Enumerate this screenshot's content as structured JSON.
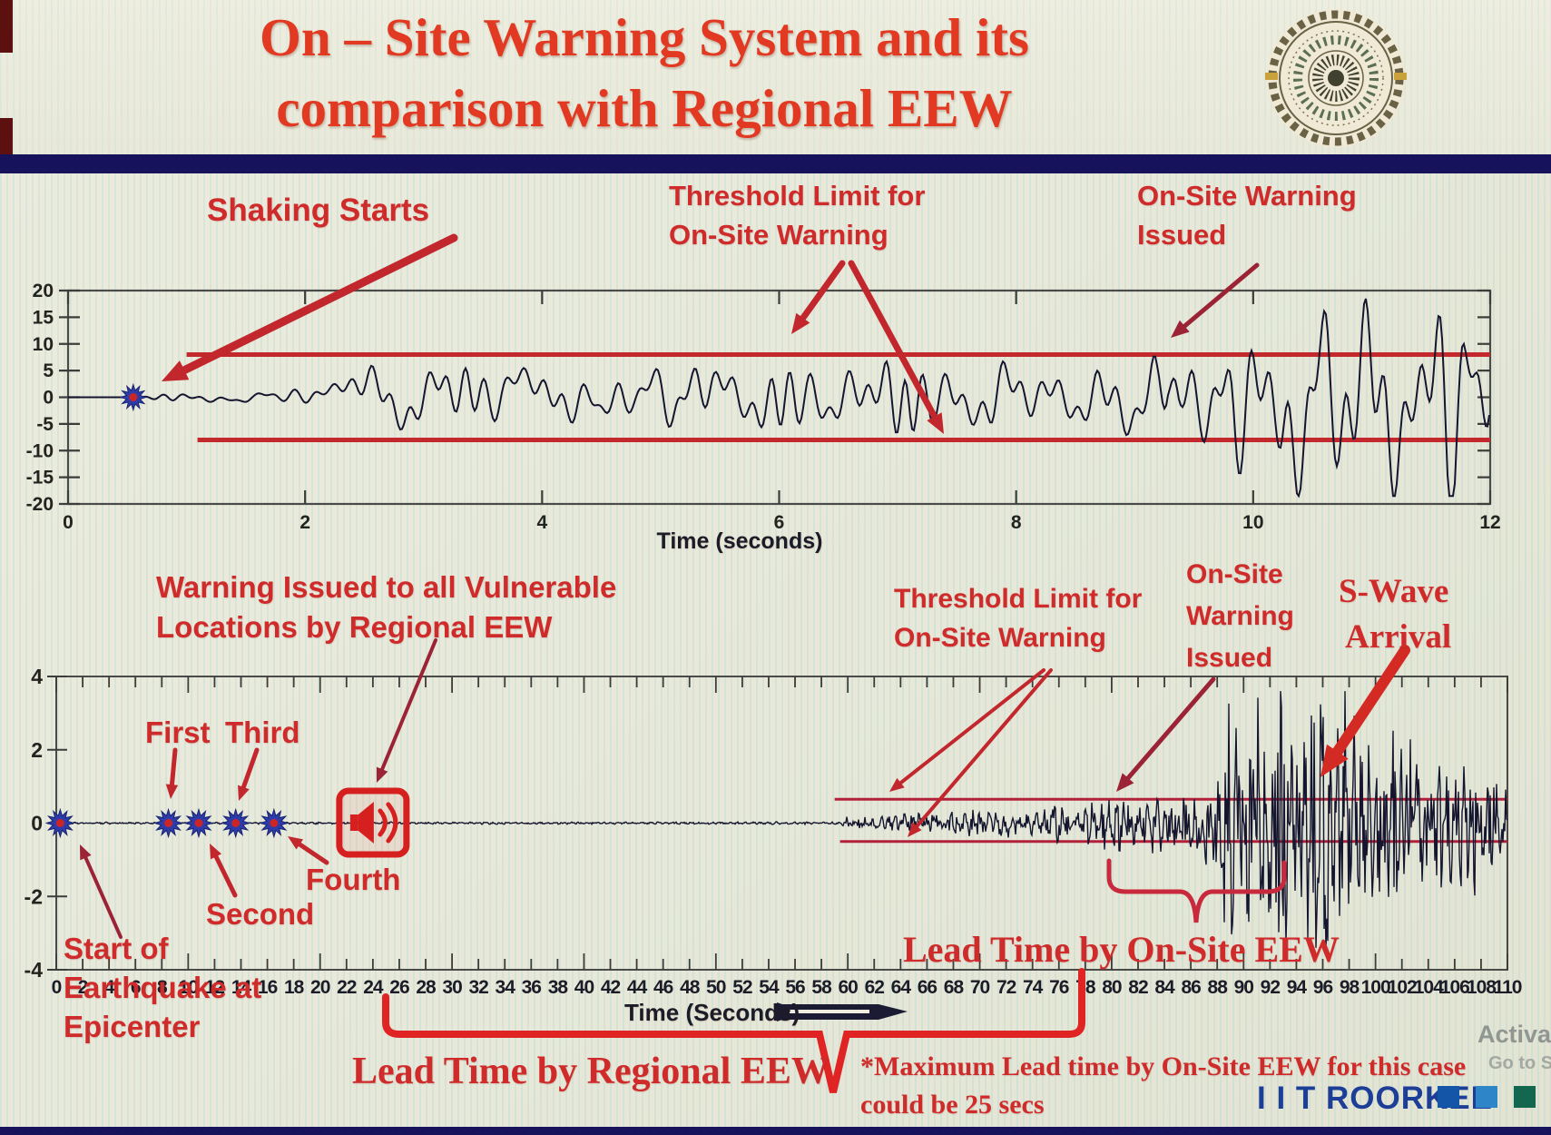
{
  "header": {
    "title_line1": "On – Site Warning System and its",
    "title_line2": "comparison with Regional EEW",
    "logo": "iit-roorkee-emblem"
  },
  "annotations": {
    "shaking_starts": "Shaking Starts",
    "threshold_top_l1": "Threshold Limit for",
    "threshold_top_l2": "On-Site Warning",
    "onsite_top_l1": "On-Site Warning",
    "onsite_top_l2": "Issued",
    "regional_l1": "Warning Issued to all Vulnerable",
    "regional_l2": "Locations by Regional EEW",
    "first": "First",
    "third": "Third",
    "second": "Second",
    "fourth": "Fourth",
    "start_epicenter_l1": "Start of",
    "start_epicenter_l2": "Earthquake at",
    "start_epicenter_l3": "Epicenter",
    "threshold_bottom_l1": "Threshold Limit for",
    "threshold_bottom_l2": "On-Site Warning",
    "onsite_bottom_l1": "On-Site",
    "onsite_bottom_l2": "Warning",
    "onsite_bottom_l3": "Issued",
    "swave_l1": "S-Wave",
    "swave_l2": "Arrival",
    "lead_onsite": "Lead Time by On-Site EEW",
    "lead_regional": "Lead Time by Regional EEW",
    "note_star_l1": "*Maximum Lead time by On-Site EEW for this case",
    "note_star_l2": "could be 25 secs"
  },
  "footer": {
    "brand": "I I T ROORKEE",
    "watermark_line1": "Activate Wi",
    "watermark_line2": "Go to Settings"
  },
  "colors": {
    "title_red": "#e23a22",
    "annotation_red": "#cf2b2b",
    "threshold_red": "#c3282d",
    "threshold_red_thin": "#b3203a",
    "waveform_navy": "#15152f",
    "marker_blue": "#2d3caa",
    "marker_core_red": "#cc2525",
    "bar_navy": "#16135c",
    "brand_blue": "#1c3e97",
    "square_blue": "#1455a8",
    "square_lightblue": "#2e86c8",
    "square_green": "#13674e",
    "warning_icon_red": "#d62020"
  },
  "chart_data": [
    {
      "id": "top",
      "type": "line",
      "series_name": "on-site accelerogram",
      "xlabel": "Time (seconds)",
      "xlim": [
        0,
        12
      ],
      "x_ticks": [
        0,
        2,
        4,
        6,
        8,
        10,
        12
      ],
      "ylim": [
        -20,
        20
      ],
      "y_ticks": [
        20,
        15,
        10,
        5,
        0,
        -5,
        -10,
        -15,
        -20
      ],
      "grid": false,
      "threshold_upper": 8,
      "threshold_lower": -8,
      "threshold_start_t": 1.0,
      "shaking_start_t": 0.55,
      "onsite_warning_issued_t": 9.28,
      "amplitude_envelope": [
        [
          0.0,
          0.0
        ],
        [
          0.55,
          0.3
        ],
        [
          1.0,
          0.5
        ],
        [
          1.6,
          0.8
        ],
        [
          2.2,
          1.4
        ],
        [
          2.5,
          3.6
        ],
        [
          3.0,
          5.0
        ],
        [
          3.5,
          3.2
        ],
        [
          4.2,
          4.2
        ],
        [
          4.8,
          3.2
        ],
        [
          5.3,
          6.0
        ],
        [
          5.8,
          4.0
        ],
        [
          6.5,
          5.0
        ],
        [
          7.2,
          4.2
        ],
        [
          7.8,
          5.2
        ],
        [
          8.4,
          4.4
        ],
        [
          9.0,
          5.2
        ],
        [
          9.28,
          8.3
        ],
        [
          9.55,
          6.0
        ],
        [
          9.85,
          13.0
        ],
        [
          10.1,
          10.0
        ],
        [
          10.45,
          17.0
        ],
        [
          10.7,
          13.5
        ],
        [
          11.0,
          16.0
        ],
        [
          11.3,
          12.0
        ],
        [
          11.6,
          15.0
        ],
        [
          11.9,
          13.0
        ],
        [
          12.0,
          12.0
        ]
      ]
    },
    {
      "id": "bottom",
      "type": "line",
      "series_name": "regional accelerogram",
      "xlabel": "Time (Seconds)",
      "xlim": [
        0,
        110
      ],
      "x_ticks": [
        0,
        2,
        4,
        6,
        8,
        10,
        12,
        14,
        16,
        18,
        20,
        22,
        24,
        26,
        28,
        30,
        32,
        34,
        36,
        38,
        40,
        42,
        44,
        46,
        48,
        50,
        52,
        54,
        56,
        58,
        60,
        62,
        64,
        66,
        68,
        70,
        72,
        74,
        76,
        78,
        80,
        82,
        84,
        86,
        88,
        90,
        92,
        94,
        96,
        98,
        100,
        102,
        104,
        106,
        108,
        110
      ],
      "ylim": [
        -4,
        4
      ],
      "y_ticks": [
        4,
        2,
        0,
        -2,
        -4
      ],
      "grid": false,
      "threshold_upper": 0.65,
      "threshold_lower": -0.5,
      "threshold_start_t": 59,
      "epicenter_start_t": 0.3,
      "p_detection_markers_t": [
        0.3,
        8.5,
        10.8,
        13.6,
        16.5
      ],
      "p_detection_labels": [
        "Start",
        "First",
        "Second",
        "Third",
        "Fourth"
      ],
      "regional_warning_icon_t": 24,
      "p_wave_arrival_t": 60,
      "onsite_warning_issued_t": 80,
      "s_wave_arrival_t": 93,
      "lead_time_onsite_span_t": [
        80,
        93
      ],
      "lead_time_regional_span_t": [
        25,
        93
      ],
      "amplitude_envelope": [
        [
          0.0,
          0.02
        ],
        [
          59.4,
          0.03
        ],
        [
          60.0,
          0.14
        ],
        [
          63.0,
          0.2
        ],
        [
          66.0,
          0.26
        ],
        [
          70.0,
          0.3
        ],
        [
          74.0,
          0.36
        ],
        [
          78.0,
          0.46
        ],
        [
          80.0,
          0.6
        ],
        [
          83.0,
          0.72
        ],
        [
          85.0,
          0.82
        ],
        [
          87.5,
          0.95
        ],
        [
          88.5,
          2.2
        ],
        [
          90.0,
          3.3
        ],
        [
          91.0,
          2.5
        ],
        [
          92.5,
          3.1
        ],
        [
          94.0,
          2.6
        ],
        [
          96.0,
          3.2
        ],
        [
          98.0,
          2.8
        ],
        [
          100.0,
          2.2
        ],
        [
          102.0,
          2.4
        ],
        [
          104.0,
          1.8
        ],
        [
          106.0,
          1.6
        ],
        [
          108.0,
          1.45
        ],
        [
          110.0,
          1.2
        ]
      ]
    }
  ]
}
